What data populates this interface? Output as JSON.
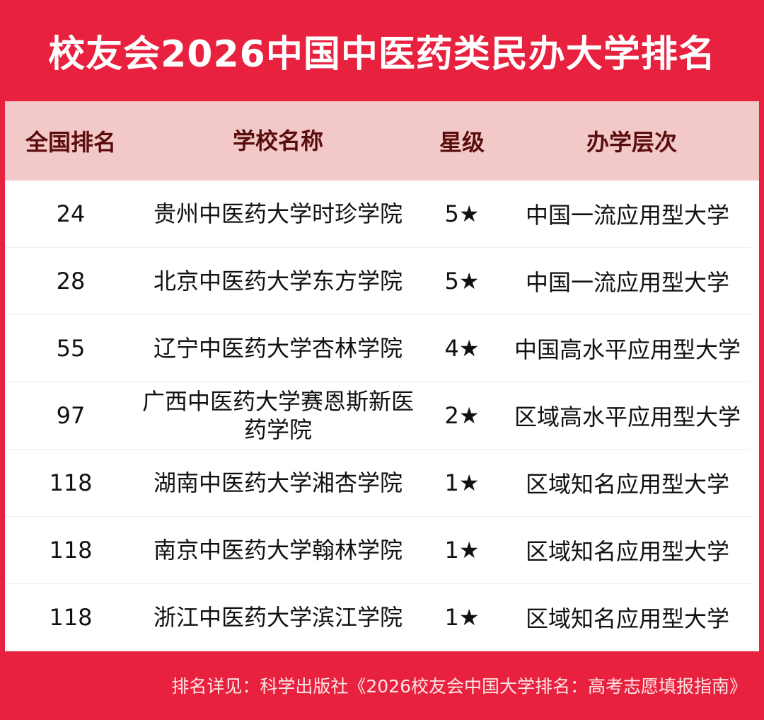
{
  "title": "校友会2026中国中医药类民办大学排名",
  "headers": [
    "全国排名",
    "学校名称",
    "星级",
    "办学层次"
  ],
  "rows": [
    {
      "rank": "24",
      "name": "贵州中医药大学时珍学院",
      "stars": "5★",
      "level": "中国一流应用型大学"
    },
    {
      "rank": "28",
      "name": "北京中医药大学东方学院",
      "stars": "5★",
      "level": "中国一流应用型大学"
    },
    {
      "rank": "55",
      "name": "辽宁中医药大学杏林学院",
      "stars": "4★",
      "level": "中国高水平应用型大学"
    },
    {
      "rank": "97",
      "name": "广西中医药大学赛恩斯新医药学院",
      "stars": "2★",
      "level": "区域高水平应用型大学"
    },
    {
      "rank": "118",
      "name": "湖南中医药大学湘杏学院",
      "stars": "1★",
      "level": "区域知名应用型大学"
    },
    {
      "rank": "118",
      "name": "南京中医药大学翰林学院",
      "stars": "1★",
      "level": "区域知名应用型大学"
    },
    {
      "rank": "118",
      "name": "浙江中医药大学滨江学院",
      "stars": "1★",
      "level": "区域知名应用型大学"
    }
  ],
  "footer": "排名详见：科学出版社《2026校友会中国大学排名：高考志愿填报指南》",
  "colors": {
    "background": "#e8213f",
    "header_bg": "#f2c9c8",
    "header_text": "#5a0d0d"
  }
}
